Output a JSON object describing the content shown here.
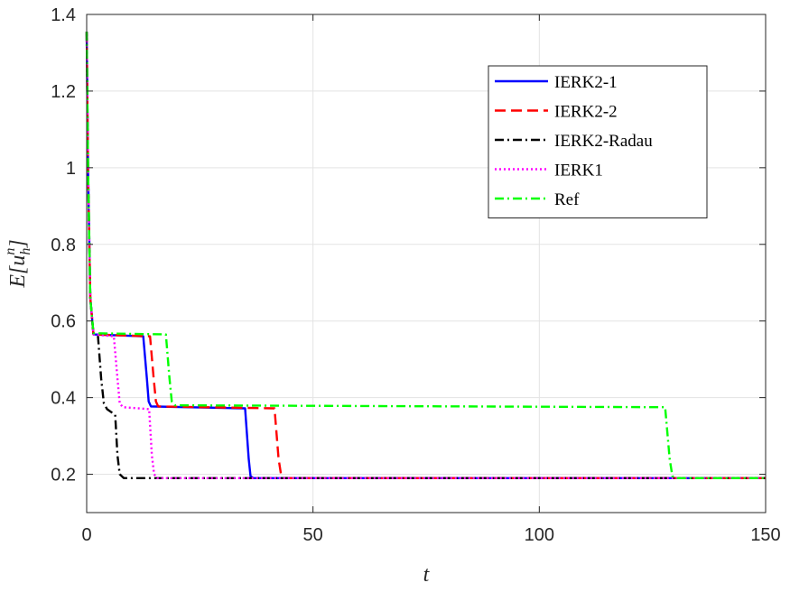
{
  "chart_data": {
    "type": "line",
    "title": "",
    "xlabel": "t",
    "ylabel": {
      "main": "E[u",
      "sub": "h",
      "sup": "n",
      "close": "]"
    },
    "xlim": [
      0,
      150
    ],
    "ylim": [
      0.1,
      1.4
    ],
    "xticks": [
      0,
      50,
      100,
      150
    ],
    "yticks": [
      0.2,
      0.4,
      0.6,
      0.8,
      1,
      1.2,
      1.4
    ],
    "xtick_labels": [
      "0",
      "50",
      "100",
      "150"
    ],
    "ytick_labels": [
      "0.2",
      "0.4",
      "0.6",
      "0.8",
      "1",
      "1.2",
      "1.4"
    ],
    "grid": true,
    "legend_position": "top-right",
    "series": [
      {
        "name": "IERK2-1",
        "color": "#0000ff",
        "dash": "solid",
        "x": [
          0,
          0.3,
          0.8,
          1.5,
          12.5,
          13.3,
          13.7,
          14.2,
          35.0,
          35.8,
          36.2,
          36.8,
          150
        ],
        "y": [
          1.355,
          1.0,
          0.66,
          0.565,
          0.56,
          0.45,
          0.39,
          0.377,
          0.372,
          0.24,
          0.195,
          0.19,
          0.19
        ]
      },
      {
        "name": "IERK2-2",
        "color": "#ff0000",
        "dash": "dash",
        "x": [
          0,
          0.3,
          0.8,
          1.5,
          14.0,
          14.8,
          15.3,
          15.8,
          41.5,
          42.4,
          43.0,
          43.6,
          150
        ],
        "y": [
          1.355,
          1.0,
          0.66,
          0.565,
          0.56,
          0.45,
          0.39,
          0.377,
          0.372,
          0.24,
          0.195,
          0.19,
          0.19
        ]
      },
      {
        "name": "IERK2-Radau",
        "color": "#000000",
        "dash": "dashdot",
        "x": [
          0,
          0.3,
          0.8,
          1.5,
          2.5,
          3.2,
          3.8,
          4.5,
          6.3,
          6.8,
          7.3,
          8.2,
          150
        ],
        "y": [
          1.355,
          1.0,
          0.66,
          0.565,
          0.56,
          0.45,
          0.385,
          0.37,
          0.355,
          0.25,
          0.2,
          0.19,
          0.19
        ]
      },
      {
        "name": "IERK1",
        "color": "#ff00ff",
        "dash": "dot",
        "x": [
          0,
          0.3,
          0.8,
          1.5,
          6.0,
          6.8,
          7.3,
          8.0,
          13.8,
          14.4,
          14.9,
          15.6,
          150
        ],
        "y": [
          1.355,
          1.0,
          0.66,
          0.565,
          0.56,
          0.45,
          0.385,
          0.375,
          0.37,
          0.25,
          0.2,
          0.19,
          0.19
        ]
      },
      {
        "name": "Ref",
        "color": "#00ff00",
        "dash": "dashdot",
        "x": [
          0,
          0.3,
          0.8,
          1.5,
          17.5,
          18.3,
          18.8,
          19.5,
          127.8,
          128.8,
          129.4,
          130.2,
          150
        ],
        "y": [
          1.355,
          1.0,
          0.66,
          0.568,
          0.565,
          0.45,
          0.39,
          0.38,
          0.375,
          0.24,
          0.195,
          0.19,
          0.19
        ]
      }
    ]
  }
}
